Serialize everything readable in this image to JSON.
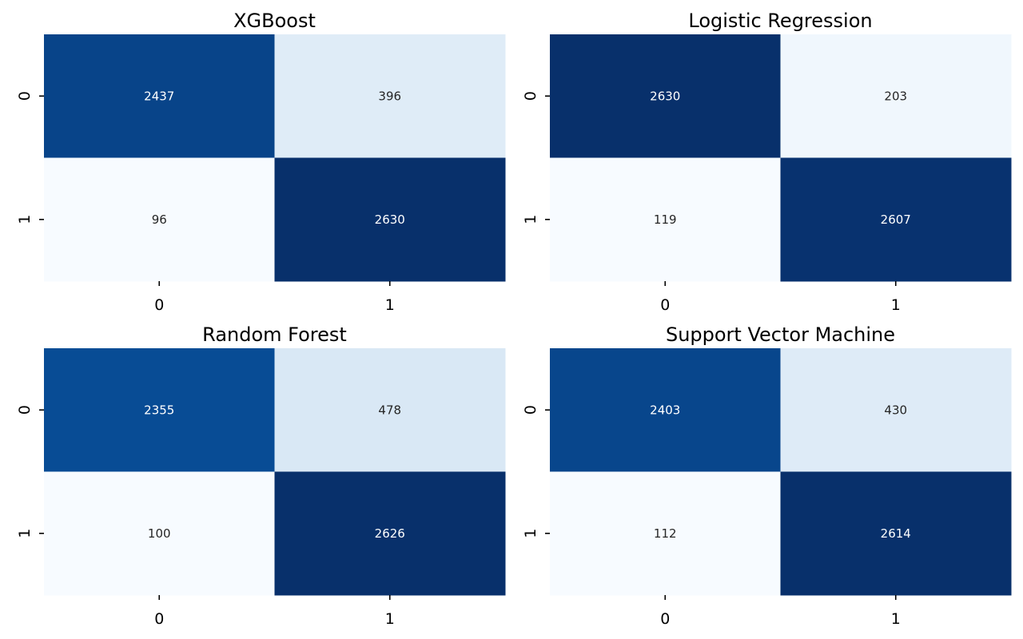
{
  "chart_data": [
    {
      "type": "heatmap",
      "title": "XGBoost",
      "x_categories": [
        "0",
        "1"
      ],
      "y_categories": [
        "0",
        "1"
      ],
      "values": [
        [
          2437,
          396
        ],
        [
          96,
          2630
        ]
      ],
      "colormap": "Blues",
      "colorbar": false
    },
    {
      "type": "heatmap",
      "title": "Logistic Regression",
      "x_categories": [
        "0",
        "1"
      ],
      "y_categories": [
        "0",
        "1"
      ],
      "values": [
        [
          2630,
          203
        ],
        [
          119,
          2607
        ]
      ],
      "colormap": "Blues",
      "colorbar": false
    },
    {
      "type": "heatmap",
      "title": "Random Forest",
      "x_categories": [
        "0",
        "1"
      ],
      "y_categories": [
        "0",
        "1"
      ],
      "values": [
        [
          2355,
          478
        ],
        [
          100,
          2626
        ]
      ],
      "colormap": "Blues",
      "colorbar": false
    },
    {
      "type": "heatmap",
      "title": "Support Vector Machine",
      "x_categories": [
        "0",
        "1"
      ],
      "y_categories": [
        "0",
        "1"
      ],
      "values": [
        [
          2403,
          430
        ],
        [
          112,
          2614
        ]
      ],
      "colormap": "Blues",
      "colorbar": false
    }
  ]
}
